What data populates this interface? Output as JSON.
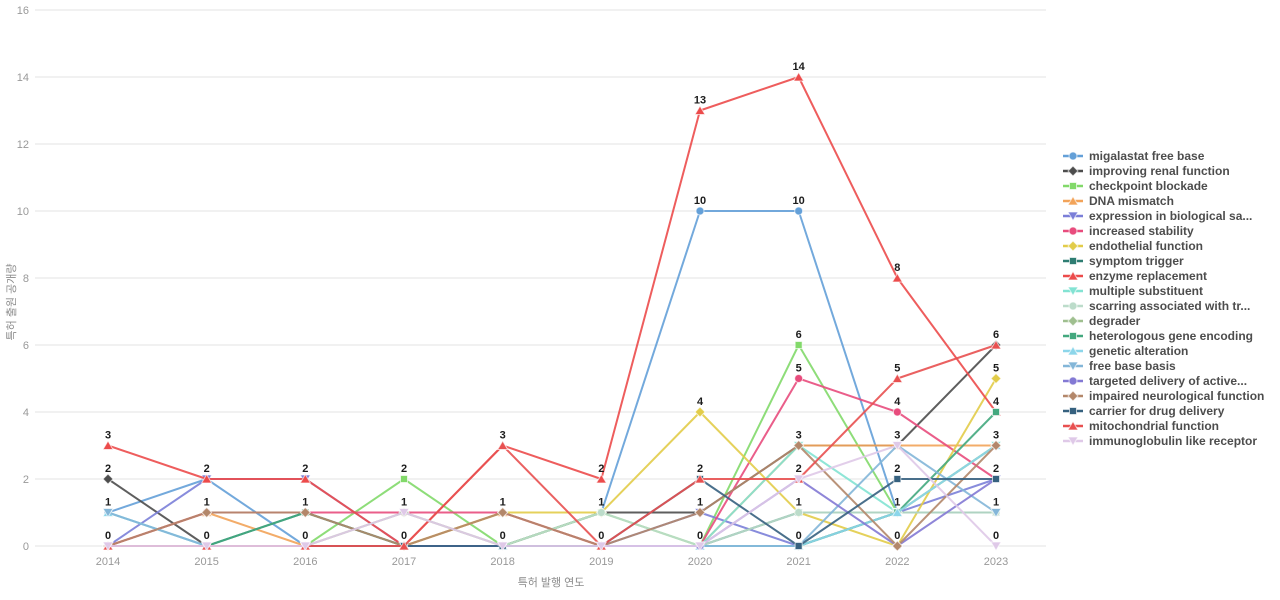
{
  "chart_data": {
    "type": "line",
    "title": "",
    "xlabel": "특허 발행 연도",
    "ylabel": "특허 출원 공개량",
    "x": [
      "2014",
      "2015",
      "2016",
      "2017",
      "2018",
      "2019",
      "2020",
      "2021",
      "2022",
      "2023"
    ],
    "ylim": [
      0,
      16
    ],
    "yticks": [
      0,
      2,
      4,
      6,
      8,
      10,
      12,
      14,
      16
    ],
    "grid": true,
    "legend_position": "right",
    "point_labels": "one label per distinct value per year, bold, above points",
    "series": [
      {
        "name": "migalastat free base",
        "color": "#64A0D8",
        "marker": "circle",
        "values": [
          1,
          2,
          0,
          0,
          0,
          1,
          10,
          10,
          1,
          1
        ]
      },
      {
        "name": "improving renal function",
        "color": "#4D4D4D",
        "marker": "diamond",
        "values": [
          2,
          0,
          0,
          0,
          0,
          1,
          1,
          3,
          3,
          6
        ]
      },
      {
        "name": "checkpoint blockade",
        "color": "#82D96A",
        "marker": "square",
        "values": [
          0,
          0,
          0,
          2,
          0,
          1,
          0,
          6,
          1,
          3
        ]
      },
      {
        "name": "DNA mismatch",
        "color": "#F2A359",
        "marker": "triangle-up",
        "values": [
          0,
          1,
          0,
          0,
          1,
          0,
          0,
          3,
          3,
          3
        ]
      },
      {
        "name": "expression in biological sa...",
        "color": "#7B7FD8",
        "marker": "triangle-down",
        "values": [
          0,
          2,
          2,
          0,
          0,
          0,
          1,
          0,
          1,
          2
        ]
      },
      {
        "name": "increased stability",
        "color": "#E84C7D",
        "marker": "circle",
        "values": [
          0,
          1,
          1,
          1,
          1,
          0,
          0,
          5,
          4,
          2
        ]
      },
      {
        "name": "endothelial function",
        "color": "#E2CC49",
        "marker": "diamond",
        "values": [
          0,
          0,
          0,
          0,
          1,
          1,
          4,
          1,
          0,
          5
        ]
      },
      {
        "name": "symptom trigger",
        "color": "#2E7D72",
        "marker": "square",
        "values": [
          0,
          0,
          1,
          0,
          0,
          0,
          0,
          1,
          1,
          1
        ]
      },
      {
        "name": "enzyme replacement",
        "color": "#EC4B4B",
        "marker": "triangle-up",
        "values": [
          3,
          2,
          2,
          0,
          3,
          2,
          13,
          14,
          8,
          4
        ]
      },
      {
        "name": "multiple substituent",
        "color": "#83E3D3",
        "marker": "triangle-down",
        "values": [
          1,
          0,
          0,
          0,
          0,
          0,
          0,
          3,
          1,
          3
        ]
      },
      {
        "name": "scarring associated with tr...",
        "color": "#BCDCCA",
        "marker": "circle",
        "values": [
          0,
          0,
          0,
          0,
          0,
          1,
          0,
          1,
          1,
          1
        ]
      },
      {
        "name": "degrader",
        "color": "#9FBF8F",
        "marker": "diamond",
        "values": [
          0,
          0,
          0,
          1,
          0,
          0,
          0,
          0,
          1,
          3
        ]
      },
      {
        "name": "heterologous gene encoding",
        "color": "#43A87E",
        "marker": "square",
        "values": [
          0,
          0,
          1,
          0,
          0,
          0,
          0,
          0,
          1,
          4
        ]
      },
      {
        "name": "genetic alteration",
        "color": "#8CD6EA",
        "marker": "triangle-up",
        "values": [
          1,
          0,
          0,
          0,
          0,
          0,
          0,
          0,
          1,
          3
        ]
      },
      {
        "name": "free base basis",
        "color": "#83B6D8",
        "marker": "triangle-down",
        "values": [
          1,
          0,
          0,
          0,
          0,
          0,
          0,
          0,
          3,
          1
        ]
      },
      {
        "name": "targeted delivery of active...",
        "color": "#8379D4",
        "marker": "circle",
        "values": [
          0,
          0,
          0,
          0,
          0,
          0,
          0,
          2,
          0,
          2
        ]
      },
      {
        "name": "impaired neurological function",
        "color": "#B3876A",
        "marker": "diamond",
        "values": [
          0,
          1,
          1,
          0,
          1,
          0,
          1,
          3,
          0,
          3
        ]
      },
      {
        "name": "carrier for drug delivery",
        "color": "#36617F",
        "marker": "square",
        "values": [
          0,
          0,
          0,
          0,
          0,
          0,
          2,
          0,
          2,
          2
        ]
      },
      {
        "name": "mitochondrial function",
        "color": "#E85050",
        "marker": "triangle-up",
        "values": [
          0,
          0,
          0,
          0,
          3,
          0,
          2,
          2,
          5,
          6
        ]
      },
      {
        "name": "immunoglobulin like receptor",
        "color": "#DFC9E8",
        "marker": "triangle-down",
        "values": [
          0,
          0,
          0,
          1,
          0,
          0,
          0,
          2,
          3,
          0
        ]
      }
    ]
  },
  "colors": {
    "background": "#ffffff",
    "gridline": "#e3e3e3",
    "tick_text": "#999999",
    "axis_title_text": "#8b8b8b",
    "value_label_text": "#1c1c1c",
    "legend_text": "#4d4d4d"
  }
}
